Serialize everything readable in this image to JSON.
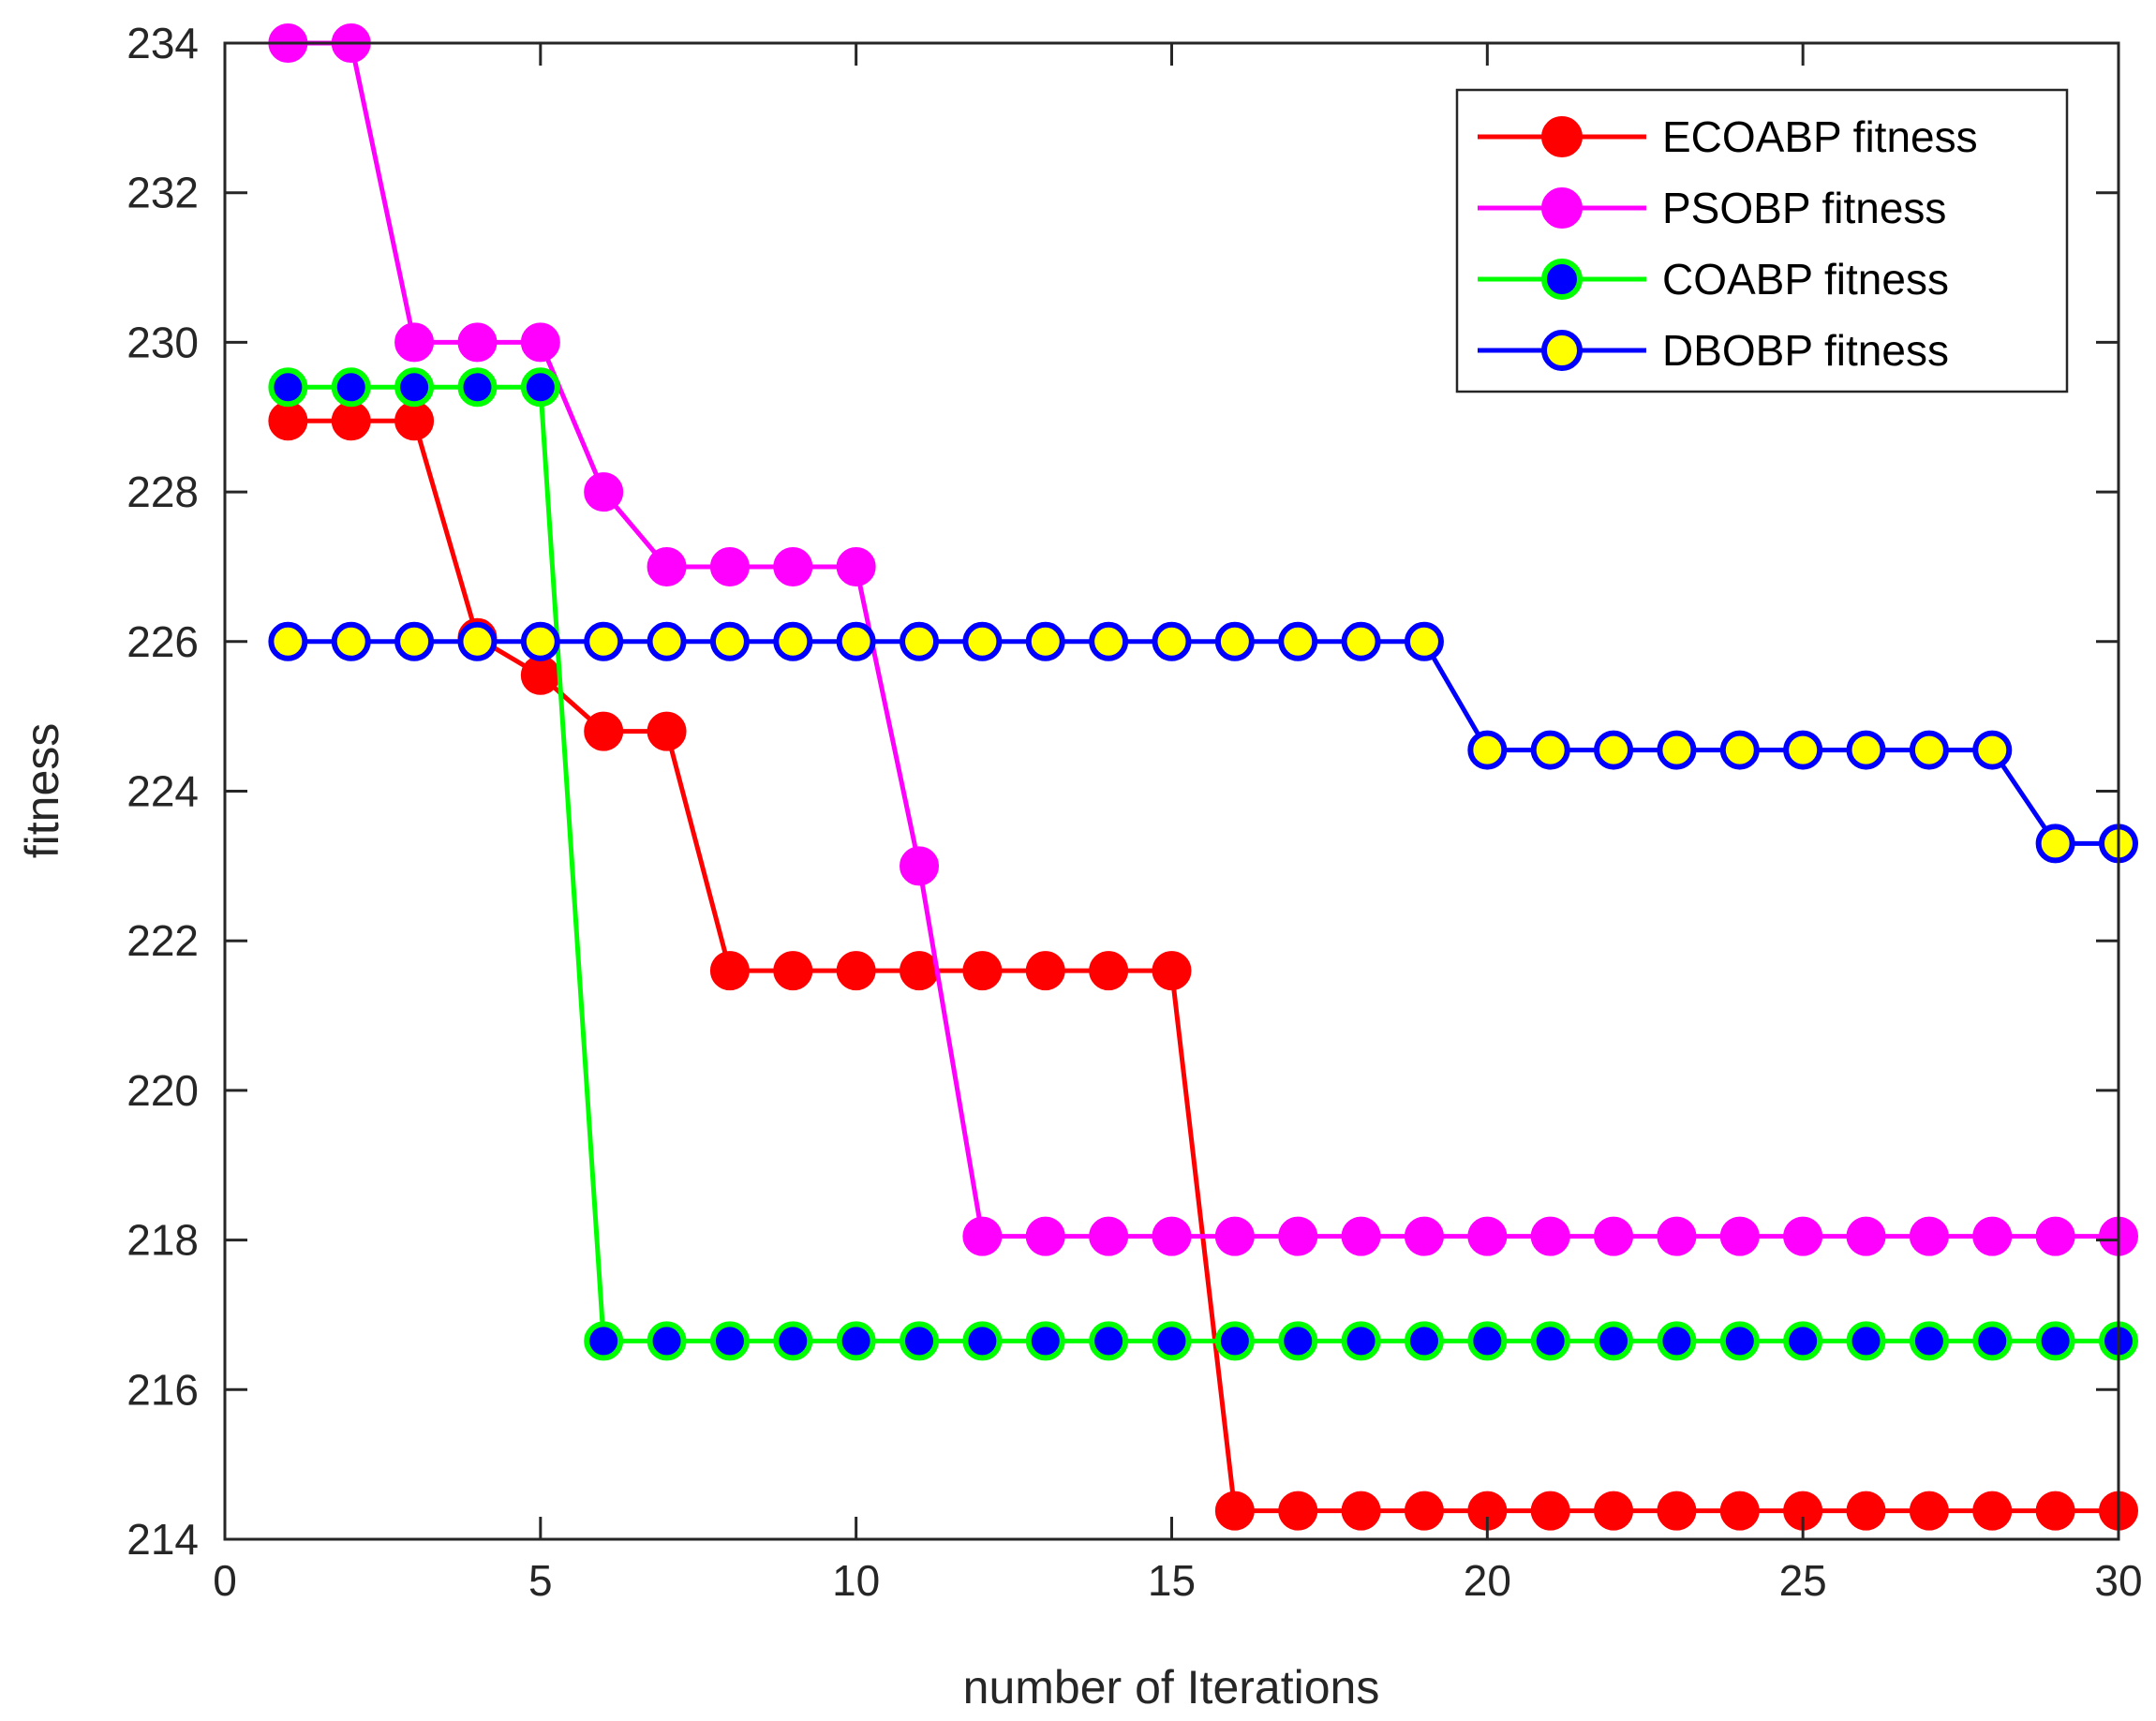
{
  "chart_data": {
    "type": "line",
    "title": "",
    "xlabel": "number of Iterations",
    "ylabel": "fitness",
    "xlim": [
      0,
      30
    ],
    "ylim": [
      214,
      234
    ],
    "xticks": [
      0,
      5,
      10,
      15,
      20,
      25,
      30
    ],
    "yticks": [
      214,
      216,
      218,
      220,
      222,
      224,
      226,
      228,
      230,
      232,
      234
    ],
    "xtick_labels": [
      "0",
      "5",
      "10",
      "15",
      "20",
      "25",
      "30"
    ],
    "ytick_labels": [
      "214",
      "216",
      "218",
      "220",
      "222",
      "224",
      "226",
      "228",
      "230",
      "232",
      "234"
    ],
    "grid": false,
    "legend_position": "top-right",
    "x": [
      1,
      2,
      3,
      4,
      5,
      6,
      7,
      8,
      9,
      10,
      11,
      12,
      13,
      14,
      15,
      16,
      17,
      18,
      19,
      20,
      21,
      22,
      23,
      24,
      25,
      26,
      27,
      28,
      29,
      30
    ],
    "series": [
      {
        "name": "ECOABP fitness",
        "line_color": "#ff0000",
        "marker_face": "#ff0000",
        "marker_edge": "#ff0000",
        "values": [
          228.95,
          228.95,
          228.95,
          226.05,
          225.55,
          224.8,
          224.8,
          221.6,
          221.6,
          221.6,
          221.6,
          221.6,
          221.6,
          221.6,
          221.6,
          214.38,
          214.38,
          214.38,
          214.38,
          214.38,
          214.38,
          214.38,
          214.38,
          214.38,
          214.38,
          214.38,
          214.38,
          214.38,
          214.38,
          214.38
        ]
      },
      {
        "name": "PSOBP fitness",
        "line_color": "#ff00ff",
        "marker_face": "#ff00ff",
        "marker_edge": "#ff00ff",
        "values": [
          234,
          234,
          230,
          230,
          230,
          228,
          227,
          227,
          227,
          227,
          223,
          218.05,
          218.05,
          218.05,
          218.05,
          218.05,
          218.05,
          218.05,
          218.05,
          218.05,
          218.05,
          218.05,
          218.05,
          218.05,
          218.05,
          218.05,
          218.05,
          218.05,
          218.05,
          218.05
        ]
      },
      {
        "name": "COABP fitness",
        "line_color": "#00ff00",
        "marker_face": "#0000ff",
        "marker_edge": "#00ff00",
        "values": [
          229.4,
          229.4,
          229.4,
          229.4,
          229.4,
          216.65,
          216.65,
          216.65,
          216.65,
          216.65,
          216.65,
          216.65,
          216.65,
          216.65,
          216.65,
          216.65,
          216.65,
          216.65,
          216.65,
          216.65,
          216.65,
          216.65,
          216.65,
          216.65,
          216.65,
          216.65,
          216.65,
          216.65,
          216.65,
          216.65
        ]
      },
      {
        "name": "DBOBP fitness",
        "line_color": "#0000ff",
        "marker_face": "#ffff00",
        "marker_edge": "#0000ff",
        "values": [
          226,
          226,
          226,
          226,
          226,
          226,
          226,
          226,
          226,
          226,
          226,
          226,
          226,
          226,
          226,
          226,
          226,
          226,
          226,
          224.55,
          224.55,
          224.55,
          224.55,
          224.55,
          224.55,
          224.55,
          224.55,
          224.55,
          223.3,
          223.3
        ]
      }
    ]
  }
}
